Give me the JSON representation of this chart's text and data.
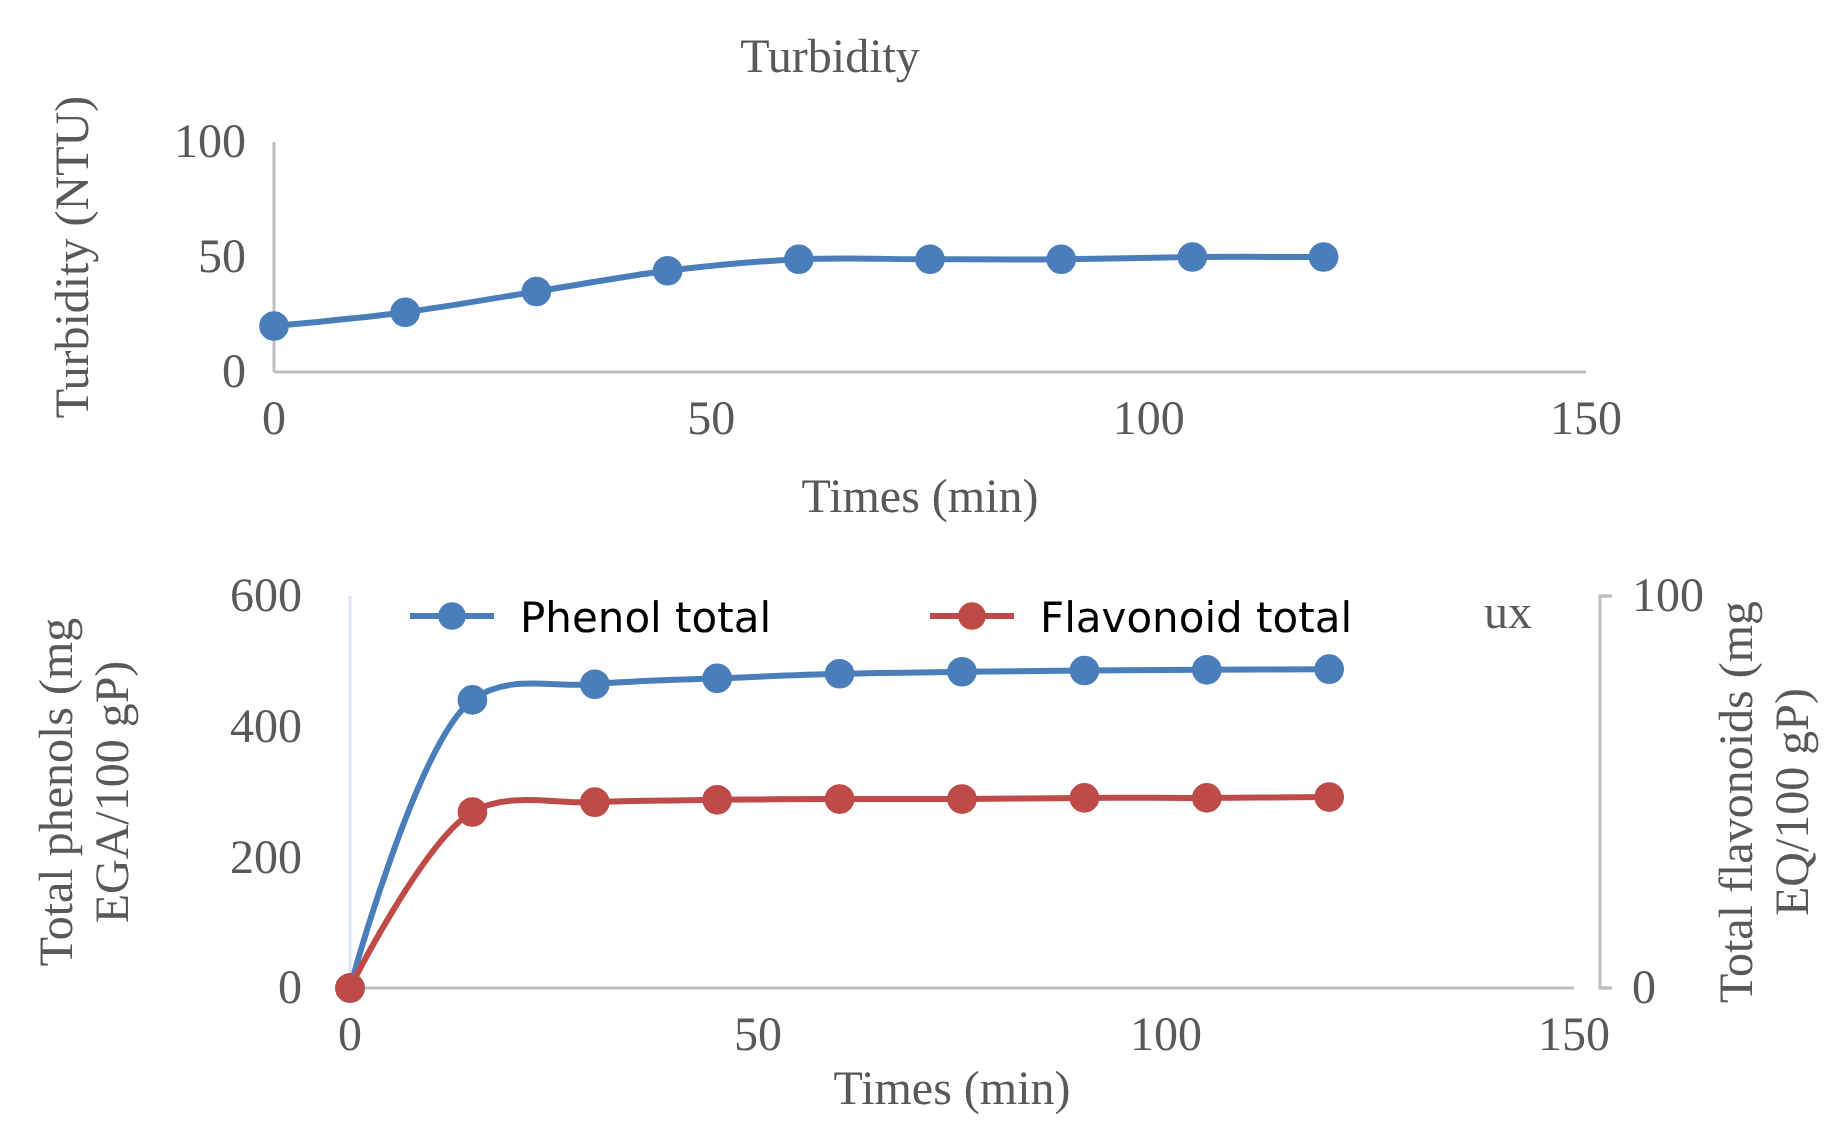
{
  "chart_data": [
    {
      "type": "line",
      "title": "Turbidity",
      "xlabel": "Times (min)",
      "ylabel": "Turbidity (NTU)",
      "x": [
        0,
        15,
        30,
        45,
        60,
        75,
        90,
        105,
        120
      ],
      "series": [
        {
          "color": "#4a7ebb",
          "values": [
            20,
            26,
            35,
            44,
            49,
            49,
            49,
            50,
            50
          ]
        }
      ],
      "xlim": [
        0,
        150
      ],
      "xticks": [
        0,
        50,
        100,
        150
      ],
      "ylim": [
        0,
        100
      ],
      "yticks": [
        0,
        50,
        100
      ],
      "marker": "circle",
      "grid": false,
      "legend": false
    },
    {
      "type": "line",
      "xlabel": "Times (min)",
      "ylabel": "Total phenols (mg EGA/100 gP)",
      "y2label": "Total flavonoids (mg EQ/100 gP)",
      "x": [
        0,
        15,
        30,
        45,
        60,
        75,
        90,
        105,
        120
      ],
      "series": [
        {
          "name": "Phenol total",
          "color": "#4a7ebb",
          "values": [
            0,
            441,
            465,
            474,
            481,
            484,
            486,
            487,
            488
          ]
        },
        {
          "name": "Flavonoid total",
          "color": "#be4b48",
          "axis": "y2",
          "values": [
            0,
            44.9,
            47.4,
            48,
            48.2,
            48.2,
            48.5,
            48.5,
            48.7
          ]
        }
      ],
      "xlim": [
        0,
        150
      ],
      "xticks": [
        0,
        50,
        100,
        150
      ],
      "ylim": [
        0,
        600
      ],
      "yticks": [
        0,
        200,
        400,
        600
      ],
      "y2lim": [
        0,
        100
      ],
      "y2ticks": [
        0,
        100
      ],
      "annotations": [
        "ux"
      ],
      "marker": "circle",
      "grid": false,
      "legend": "top"
    }
  ]
}
